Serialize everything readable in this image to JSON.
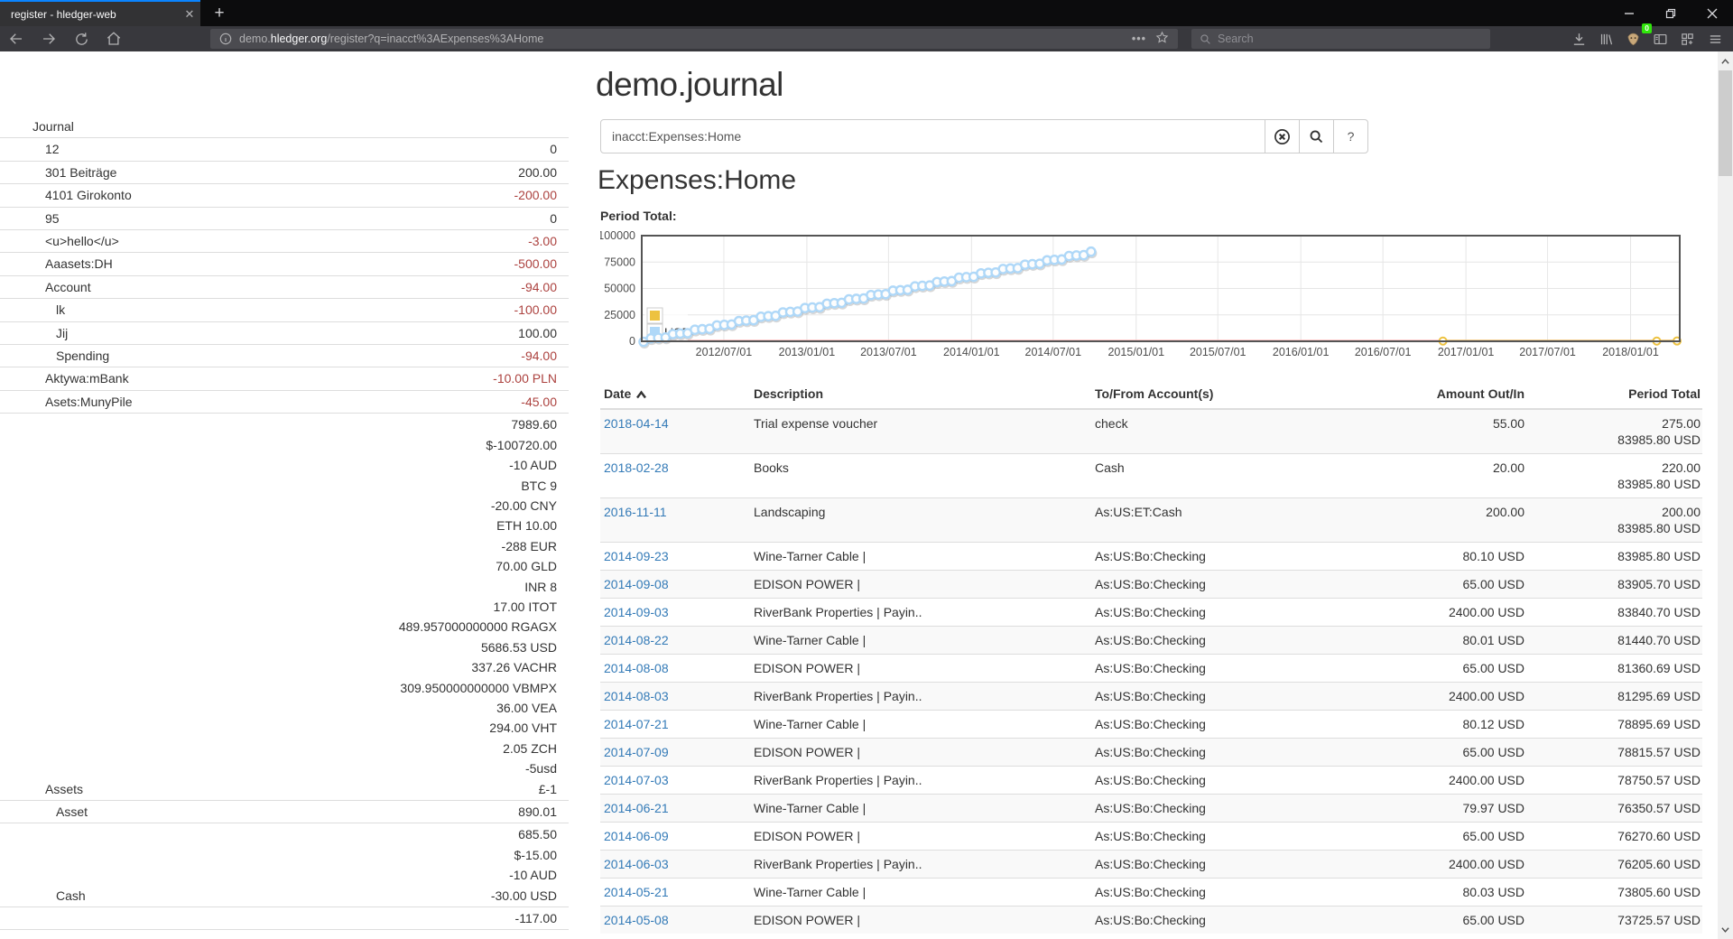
{
  "browser": {
    "tab_title": "register - hledger-web",
    "url_prefix": "demo.",
    "url_domain": "hledger.org",
    "url_path": "/register?q=inacct%3AExpenses%3AHome",
    "search_placeholder": "Search",
    "extension_badge": "0"
  },
  "main": {
    "title": "demo.journal",
    "search_value": "inacct:Expenses:Home",
    "help_button_label": "?",
    "heading": "Expenses:Home",
    "chart_label": "Period Total:"
  },
  "sidebar": {
    "rows": [
      {
        "label": "Journal",
        "indent": 0,
        "lines": []
      },
      {
        "label": "12",
        "indent": 1,
        "lines": [
          {
            "text": "0",
            "neg": false
          }
        ]
      },
      {
        "label": "301 Beiträge",
        "indent": 1,
        "lines": [
          {
            "text": "200.00",
            "neg": false
          }
        ]
      },
      {
        "label": "4101 Girokonto",
        "indent": 1,
        "lines": [
          {
            "text": "-200.00",
            "neg": true
          }
        ]
      },
      {
        "label": "95",
        "indent": 1,
        "lines": [
          {
            "text": "0",
            "neg": false
          }
        ]
      },
      {
        "label": "<u>hello</u>",
        "indent": 1,
        "lines": [
          {
            "text": "-3.00",
            "neg": true
          }
        ]
      },
      {
        "label": "Aaasets:DH",
        "indent": 1,
        "lines": [
          {
            "text": "-500.00",
            "neg": true
          }
        ]
      },
      {
        "label": "Account",
        "indent": 1,
        "lines": [
          {
            "text": "-94.00",
            "neg": true
          }
        ]
      },
      {
        "label": "lk",
        "indent": 2,
        "lines": [
          {
            "text": "-100.00",
            "neg": true
          }
        ]
      },
      {
        "label": "Jij",
        "indent": 2,
        "lines": [
          {
            "text": "100.00",
            "neg": false
          }
        ]
      },
      {
        "label": "Spending",
        "indent": 2,
        "lines": [
          {
            "text": "-94.00",
            "neg": true
          }
        ]
      },
      {
        "label": "Aktywa:mBank",
        "indent": 1,
        "lines": [
          {
            "text": "-10.00 PLN",
            "neg": true
          }
        ]
      },
      {
        "label": "Asets:MunyPile",
        "indent": 1,
        "lines": [
          {
            "text": "-45.00",
            "neg": true
          }
        ]
      },
      {
        "label": "Assets",
        "indent": 1,
        "lines": [
          {
            "text": "7989.60",
            "neg": false
          },
          {
            "text": "$-100720.00",
            "neg": false
          },
          {
            "text": "-10 AUD",
            "neg": false
          },
          {
            "text": "BTC 9",
            "neg": false
          },
          {
            "text": "-20.00 CNY",
            "neg": false
          },
          {
            "text": "ETH 10.00",
            "neg": false
          },
          {
            "text": "-288 EUR",
            "neg": false
          },
          {
            "text": "70.00 GLD",
            "neg": false
          },
          {
            "text": "INR 8",
            "neg": false
          },
          {
            "text": "17.00 ITOT",
            "neg": false
          },
          {
            "text": "489.957000000000 RGAGX",
            "neg": false
          },
          {
            "text": "5686.53 USD",
            "neg": false
          },
          {
            "text": "337.26 VACHR",
            "neg": false
          },
          {
            "text": "309.950000000000 VBMPX",
            "neg": false
          },
          {
            "text": "36.00 VEA",
            "neg": false
          },
          {
            "text": "294.00 VHT",
            "neg": false
          },
          {
            "text": "2.05 ZCH",
            "neg": false
          },
          {
            "text": "-5usd",
            "neg": false
          },
          {
            "text": "£-1",
            "neg": false
          }
        ]
      },
      {
        "label": "Asset",
        "indent": 2,
        "lines": [
          {
            "text": "890.01",
            "neg": false
          }
        ]
      },
      {
        "label": "Cash",
        "indent": 2,
        "lines": [
          {
            "text": "685.50",
            "neg": false
          },
          {
            "text": "$-15.00",
            "neg": false
          },
          {
            "text": "-10 AUD",
            "neg": false
          },
          {
            "text": "-30.00 USD",
            "neg": false
          }
        ]
      },
      {
        "label": "",
        "indent": 2,
        "lines": [
          {
            "text": "-117.00",
            "neg": false
          }
        ]
      }
    ]
  },
  "chart_data": {
    "type": "line",
    "title": "Period Total:",
    "x_range": [
      "2012-01-01",
      "2018-04-20"
    ],
    "x_ticks": [
      "2012/07/01",
      "2013/01/01",
      "2013/07/01",
      "2014/01/01",
      "2014/07/01",
      "2015/01/01",
      "2015/07/01",
      "2016/01/01",
      "2016/07/01",
      "2017/01/01",
      "2017/07/01",
      "2018/01/01"
    ],
    "y_range": [
      0,
      100000
    ],
    "y_ticks": [
      0,
      25000,
      50000,
      75000,
      100000
    ],
    "grid": true,
    "legend_position": "inside-bottom-left",
    "legend": [
      {
        "label": "",
        "color": "#edc240"
      },
      {
        "label": "USD",
        "color": "#afd8f8"
      }
    ],
    "series": [
      {
        "name": "",
        "color": "#edc240",
        "style": "line-with-markers",
        "points": [
          [
            "2016-11-11",
            200
          ],
          [
            "2018-02-28",
            220
          ],
          [
            "2018-04-14",
            275
          ]
        ]
      },
      {
        "name": "USD",
        "color": "#afd8f8",
        "style": "scatter-markers",
        "description": "cumulative period total, ~62 roughly linear points",
        "start_point": [
          "2012-01-05",
          500
        ],
        "end_point": [
          "2014-09-23",
          83985.8
        ],
        "point_count": 62
      }
    ],
    "zero_line_color": "#ffb8b8"
  },
  "table": {
    "headers": [
      "Date",
      "Description",
      "To/From Account(s)",
      "Amount Out/In",
      "Period Total"
    ],
    "sort_column": "Date",
    "rows": [
      {
        "date": "2018-04-14",
        "desc": "Trial expense voucher",
        "acct": "check",
        "amount": "55.00",
        "period": [
          "275.00",
          "83985.80 USD"
        ]
      },
      {
        "date": "2018-02-28",
        "desc": "Books",
        "acct": "Cash",
        "amount": "20.00",
        "period": [
          "220.00",
          "83985.80 USD"
        ]
      },
      {
        "date": "2016-11-11",
        "desc": "Landscaping",
        "acct": "As:US:ET:Cash",
        "amount": "200.00",
        "period": [
          "200.00",
          "83985.80 USD"
        ]
      },
      {
        "date": "2014-09-23",
        "desc": "Wine-Tarner Cable |",
        "acct": "As:US:Bo:Checking",
        "amount": "80.10 USD",
        "period": [
          "83985.80 USD"
        ]
      },
      {
        "date": "2014-09-08",
        "desc": "EDISON POWER |",
        "acct": "As:US:Bo:Checking",
        "amount": "65.00 USD",
        "period": [
          "83905.70 USD"
        ]
      },
      {
        "date": "2014-09-03",
        "desc": "RiverBank Properties | Payin..",
        "acct": "As:US:Bo:Checking",
        "amount": "2400.00 USD",
        "period": [
          "83840.70 USD"
        ]
      },
      {
        "date": "2014-08-22",
        "desc": "Wine-Tarner Cable |",
        "acct": "As:US:Bo:Checking",
        "amount": "80.01 USD",
        "period": [
          "81440.70 USD"
        ]
      },
      {
        "date": "2014-08-08",
        "desc": "EDISON POWER |",
        "acct": "As:US:Bo:Checking",
        "amount": "65.00 USD",
        "period": [
          "81360.69 USD"
        ]
      },
      {
        "date": "2014-08-03",
        "desc": "RiverBank Properties | Payin..",
        "acct": "As:US:Bo:Checking",
        "amount": "2400.00 USD",
        "period": [
          "81295.69 USD"
        ]
      },
      {
        "date": "2014-07-21",
        "desc": "Wine-Tarner Cable |",
        "acct": "As:US:Bo:Checking",
        "amount": "80.12 USD",
        "period": [
          "78895.69 USD"
        ]
      },
      {
        "date": "2014-07-09",
        "desc": "EDISON POWER |",
        "acct": "As:US:Bo:Checking",
        "amount": "65.00 USD",
        "period": [
          "78815.57 USD"
        ]
      },
      {
        "date": "2014-07-03",
        "desc": "RiverBank Properties | Payin..",
        "acct": "As:US:Bo:Checking",
        "amount": "2400.00 USD",
        "period": [
          "78750.57 USD"
        ]
      },
      {
        "date": "2014-06-21",
        "desc": "Wine-Tarner Cable |",
        "acct": "As:US:Bo:Checking",
        "amount": "79.97 USD",
        "period": [
          "76350.57 USD"
        ]
      },
      {
        "date": "2014-06-09",
        "desc": "EDISON POWER |",
        "acct": "As:US:Bo:Checking",
        "amount": "65.00 USD",
        "period": [
          "76270.60 USD"
        ]
      },
      {
        "date": "2014-06-03",
        "desc": "RiverBank Properties | Payin..",
        "acct": "As:US:Bo:Checking",
        "amount": "2400.00 USD",
        "period": [
          "76205.60 USD"
        ]
      },
      {
        "date": "2014-05-21",
        "desc": "Wine-Tarner Cable |",
        "acct": "As:US:Bo:Checking",
        "amount": "80.03 USD",
        "period": [
          "73805.60 USD"
        ]
      },
      {
        "date": "2014-05-08",
        "desc": "EDISON POWER |",
        "acct": "As:US:Bo:Checking",
        "amount": "65.00 USD",
        "period": [
          "73725.57 USD"
        ]
      }
    ]
  }
}
